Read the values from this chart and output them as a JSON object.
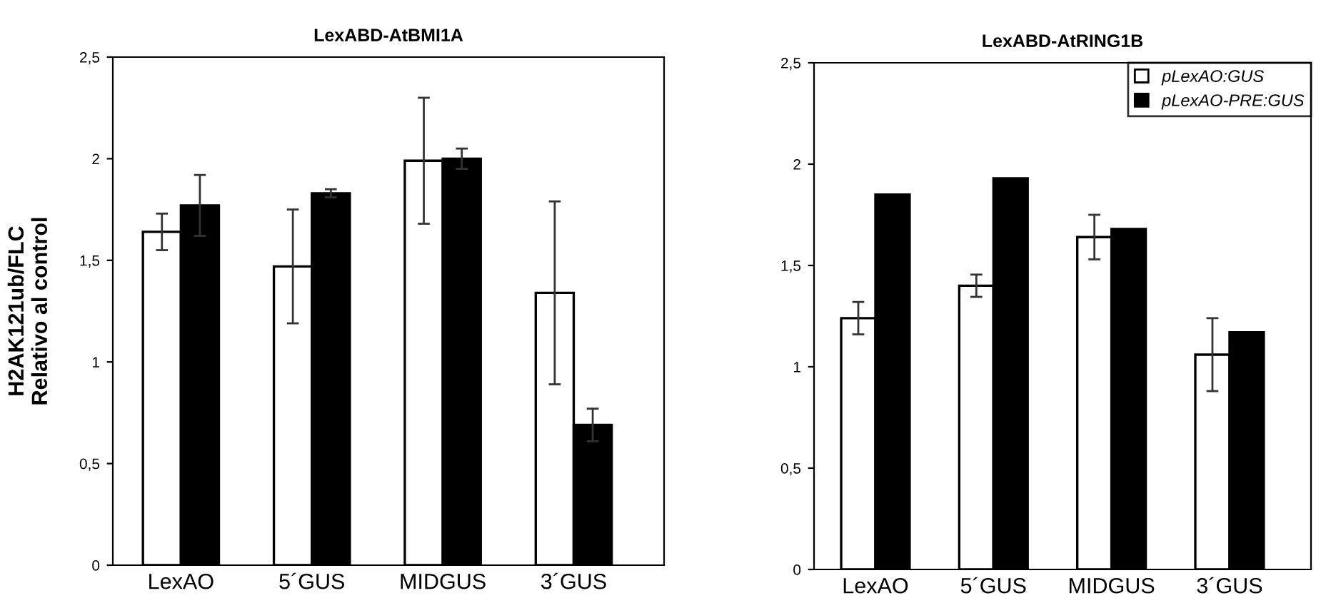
{
  "chart_data": [
    {
      "type": "bar",
      "title": "LexABD-AtBMI1A",
      "ylabel": "H2AK121ub/FLC\nRelativo al control",
      "categories": [
        "LexAO",
        "5´GUS",
        "MIDGUS",
        "3´GUS"
      ],
      "series": [
        {
          "color": "#ffffff",
          "values": [
            1.64,
            1.47,
            1.99,
            1.34
          ],
          "errors": [
            0.09,
            0.28,
            0.31,
            0.45
          ]
        },
        {
          "color": "#000000",
          "values": [
            1.77,
            1.83,
            2.0,
            0.69
          ],
          "errors": [
            0.15,
            0.02,
            0.05,
            0.08
          ]
        }
      ],
      "ylim": [
        0,
        2.5
      ],
      "yticks": [
        0,
        {
          "value": 0.5,
          "label": "0,5"
        },
        1,
        {
          "value": 1.5,
          "label": "1,5"
        },
        2,
        {
          "value": 2.5,
          "label": "2,5"
        }
      ],
      "grid": false,
      "legend": false
    },
    {
      "type": "bar",
      "title": "LexABD-AtRING1B",
      "categories": [
        "LexAO",
        "5´GUS",
        "MIDGUS",
        "3´GUS"
      ],
      "series": [
        {
          "name": "pLexAO:GUS",
          "color": "#ffffff",
          "values": [
            1.24,
            1.4,
            1.64,
            1.06
          ],
          "errors": [
            0.08,
            0.055,
            0.11,
            0.18
          ]
        },
        {
          "name": "pLexAO-PRE:GUS",
          "color": "#000000",
          "values": [
            1.85,
            1.93,
            1.68,
            1.17
          ]
        }
      ],
      "ylim": [
        0,
        2.5
      ],
      "yticks": [
        0,
        {
          "value": 0.5,
          "label": "0,5"
        },
        1,
        {
          "value": 1.5,
          "label": "1,5"
        },
        2,
        {
          "value": 2.5,
          "label": "2,5"
        }
      ],
      "grid": false,
      "legend": "top right"
    }
  ]
}
